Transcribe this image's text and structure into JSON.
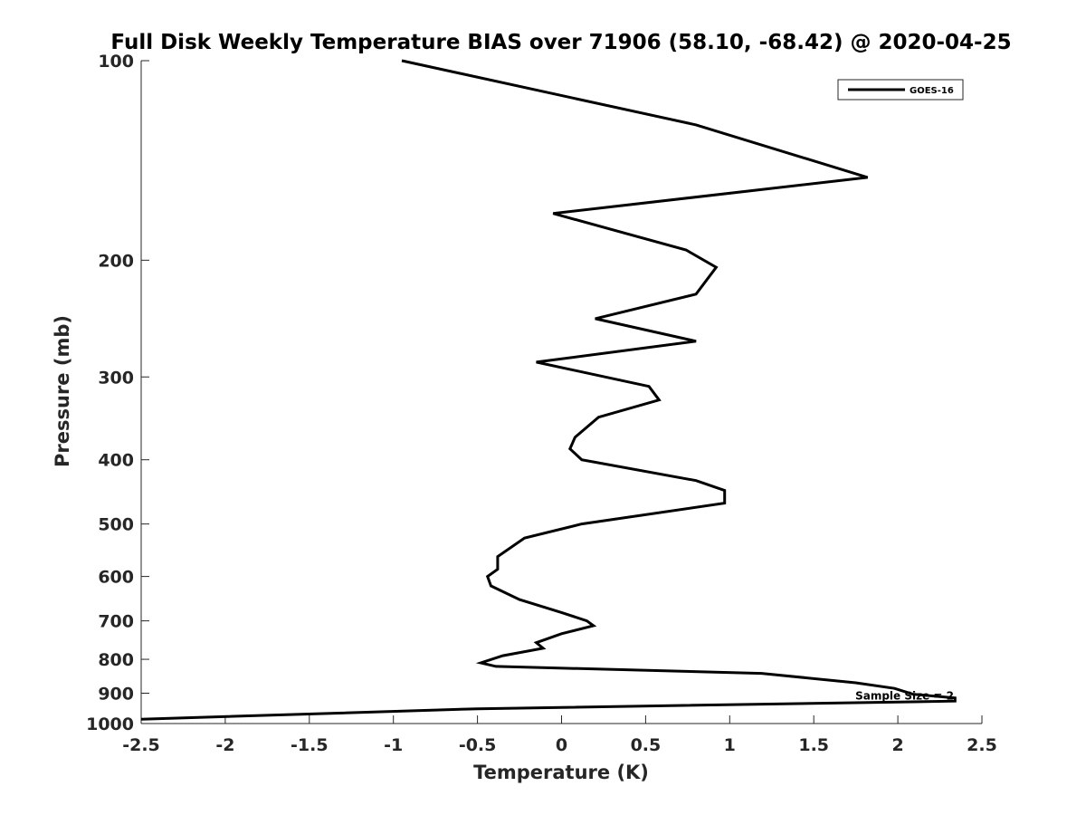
{
  "chart_data": {
    "type": "line",
    "title": "Full Disk Weekly Temperature BIAS over 71906 (58.10, -68.42) @ 2020-04-25",
    "xlabel": "Temperature (K)",
    "ylabel": "Pressure (mb)",
    "xlim": [
      -2.5,
      2.5
    ],
    "ylim": [
      100,
      1000
    ],
    "y_scale": "log",
    "y_reversed": true,
    "grid": false,
    "x_ticks": [
      -2.5,
      -2,
      -1.5,
      -1,
      -0.5,
      0,
      0.5,
      1,
      1.5,
      2,
      2.5
    ],
    "x_tick_labels": [
      "-2.5",
      "-2",
      "-1.5",
      "-1",
      "-0.5",
      "0",
      "0.5",
      "1",
      "1.5",
      "2",
      "2.5"
    ],
    "y_ticks": [
      100,
      200,
      300,
      400,
      500,
      600,
      700,
      800,
      900,
      1000
    ],
    "y_tick_labels": [
      "100",
      "200",
      "300",
      "400",
      "500",
      "600",
      "700",
      "800",
      "900",
      "1000"
    ],
    "legend": {
      "position": "top-right",
      "entries": [
        "GOES-16"
      ]
    },
    "annotations": [
      {
        "text": "Sample Size = 2",
        "x": 2.04,
        "y": 908
      }
    ],
    "series": [
      {
        "name": "GOES-16",
        "color": "#000000",
        "points": [
          [
            -0.95,
            100
          ],
          [
            0.8,
            125
          ],
          [
            1.82,
            150
          ],
          [
            -0.05,
            170
          ],
          [
            0.74,
            193
          ],
          [
            0.92,
            205
          ],
          [
            0.8,
            225
          ],
          [
            0.2,
            245
          ],
          [
            0.8,
            265
          ],
          [
            -0.15,
            285
          ],
          [
            0.52,
            310
          ],
          [
            0.58,
            325
          ],
          [
            0.22,
            345
          ],
          [
            0.08,
            370
          ],
          [
            0.05,
            385
          ],
          [
            0.12,
            400
          ],
          [
            0.8,
            430
          ],
          [
            0.97,
            445
          ],
          [
            0.97,
            465
          ],
          [
            0.12,
            500
          ],
          [
            -0.22,
            525
          ],
          [
            -0.38,
            560
          ],
          [
            -0.38,
            585
          ],
          [
            -0.44,
            600
          ],
          [
            -0.42,
            620
          ],
          [
            -0.25,
            650
          ],
          [
            0.0,
            680
          ],
          [
            0.15,
            700
          ],
          [
            0.19,
            712
          ],
          [
            0.0,
            732
          ],
          [
            -0.15,
            755
          ],
          [
            -0.11,
            770
          ],
          [
            -0.35,
            790
          ],
          [
            -0.48,
            810
          ],
          [
            -0.39,
            820
          ],
          [
            1.19,
            840
          ],
          [
            1.75,
            868
          ],
          [
            1.98,
            885
          ],
          [
            2.09,
            903
          ],
          [
            2.34,
            915
          ],
          [
            2.34,
            925
          ],
          [
            -0.5,
            950
          ],
          [
            -2.5,
            985
          ]
        ]
      }
    ]
  }
}
